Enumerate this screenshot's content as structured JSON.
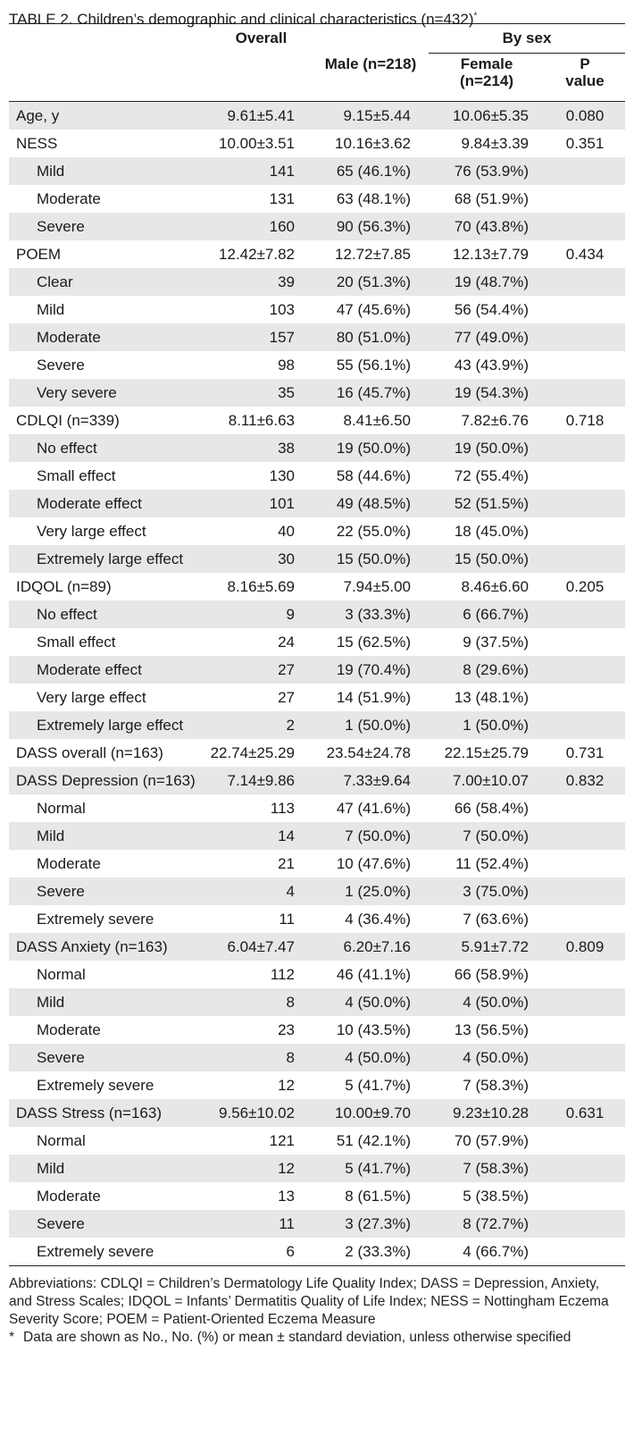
{
  "title": "TABLE 2.  Children’s demographic and clinical characteristics (n=432)",
  "title_mark": "*",
  "headers": {
    "overall": "Overall",
    "by_sex": "By sex",
    "male": "Male (n=218)",
    "female_1": "Female",
    "female_2": "(n=214)",
    "p_1": "P",
    "p_2": "value"
  },
  "rows": [
    {
      "label": "Age, y",
      "sub": false,
      "overall": "9.61±5.41",
      "male": "9.15±5.44",
      "female": "10.06±5.35",
      "p": "0.080"
    },
    {
      "label": "NESS",
      "sub": false,
      "overall": "10.00±3.51",
      "male": "10.16±3.62",
      "female": "9.84±3.39",
      "p": "0.351"
    },
    {
      "label": "Mild",
      "sub": true,
      "overall": "141",
      "male": "65 (46.1%)",
      "female": "76 (53.9%)",
      "p": ""
    },
    {
      "label": "Moderate",
      "sub": true,
      "overall": "131",
      "male": "63 (48.1%)",
      "female": "68 (51.9%)",
      "p": ""
    },
    {
      "label": "Severe",
      "sub": true,
      "overall": "160",
      "male": "90 (56.3%)",
      "female": "70 (43.8%)",
      "p": ""
    },
    {
      "label": "POEM",
      "sub": false,
      "overall": "12.42±7.82",
      "male": "12.72±7.85",
      "female": "12.13±7.79",
      "p": "0.434"
    },
    {
      "label": "Clear",
      "sub": true,
      "overall": "39",
      "male": "20 (51.3%)",
      "female": "19 (48.7%)",
      "p": ""
    },
    {
      "label": "Mild",
      "sub": true,
      "overall": "103",
      "male": "47 (45.6%)",
      "female": "56 (54.4%)",
      "p": ""
    },
    {
      "label": "Moderate",
      "sub": true,
      "overall": "157",
      "male": "80 (51.0%)",
      "female": "77 (49.0%)",
      "p": ""
    },
    {
      "label": "Severe",
      "sub": true,
      "overall": "98",
      "male": "55 (56.1%)",
      "female": "43 (43.9%)",
      "p": ""
    },
    {
      "label": "Very severe",
      "sub": true,
      "overall": "35",
      "male": "16 (45.7%)",
      "female": "19 (54.3%)",
      "p": ""
    },
    {
      "label": "CDLQI (n=339)",
      "sub": false,
      "overall": "8.11±6.63",
      "male": "8.41±6.50",
      "female": "7.82±6.76",
      "p": "0.718"
    },
    {
      "label": "No effect",
      "sub": true,
      "overall": "38",
      "male": "19 (50.0%)",
      "female": "19 (50.0%)",
      "p": ""
    },
    {
      "label": "Small effect",
      "sub": true,
      "overall": "130",
      "male": "58 (44.6%)",
      "female": "72 (55.4%)",
      "p": ""
    },
    {
      "label": "Moderate effect",
      "sub": true,
      "overall": "101",
      "male": "49 (48.5%)",
      "female": "52 (51.5%)",
      "p": ""
    },
    {
      "label": "Very large effect",
      "sub": true,
      "overall": "40",
      "male": "22 (55.0%)",
      "female": "18 (45.0%)",
      "p": ""
    },
    {
      "label": "Extremely large effect",
      "sub": true,
      "overall": "30",
      "male": "15 (50.0%)",
      "female": "15 (50.0%)",
      "p": ""
    },
    {
      "label": "IDQOL (n=89)",
      "sub": false,
      "overall": "8.16±5.69",
      "male": "7.94±5.00",
      "female": "8.46±6.60",
      "p": "0.205"
    },
    {
      "label": "No effect",
      "sub": true,
      "overall": "9",
      "male": "3 (33.3%)",
      "female": "6 (66.7%)",
      "p": ""
    },
    {
      "label": "Small effect",
      "sub": true,
      "overall": "24",
      "male": "15 (62.5%)",
      "female": "9 (37.5%)",
      "p": ""
    },
    {
      "label": "Moderate effect",
      "sub": true,
      "overall": "27",
      "male": "19 (70.4%)",
      "female": "8 (29.6%)",
      "p": ""
    },
    {
      "label": "Very large effect",
      "sub": true,
      "overall": "27",
      "male": "14 (51.9%)",
      "female": "13 (48.1%)",
      "p": ""
    },
    {
      "label": "Extremely large effect",
      "sub": true,
      "overall": "2",
      "male": "1 (50.0%)",
      "female": "1 (50.0%)",
      "p": ""
    },
    {
      "label": "DASS overall (n=163)",
      "sub": false,
      "overall": "22.74±25.29",
      "male": "23.54±24.78",
      "female": "22.15±25.79",
      "p": "0.731"
    },
    {
      "label": "DASS Depression (n=163)",
      "sub": false,
      "overall": "7.14±9.86",
      "male": "7.33±9.64",
      "female": "7.00±10.07",
      "p": "0.832"
    },
    {
      "label": "Normal",
      "sub": true,
      "overall": "113",
      "male": "47 (41.6%)",
      "female": "66 (58.4%)",
      "p": ""
    },
    {
      "label": "Mild",
      "sub": true,
      "overall": "14",
      "male": "7 (50.0%)",
      "female": "7 (50.0%)",
      "p": ""
    },
    {
      "label": "Moderate",
      "sub": true,
      "overall": "21",
      "male": "10 (47.6%)",
      "female": "11 (52.4%)",
      "p": ""
    },
    {
      "label": "Severe",
      "sub": true,
      "overall": "4",
      "male": "1 (25.0%)",
      "female": "3 (75.0%)",
      "p": ""
    },
    {
      "label": "Extremely severe",
      "sub": true,
      "overall": "11",
      "male": "4 (36.4%)",
      "female": "7 (63.6%)",
      "p": ""
    },
    {
      "label": "DASS Anxiety (n=163)",
      "sub": false,
      "overall": "6.04±7.47",
      "male": "6.20±7.16",
      "female": "5.91±7.72",
      "p": "0.809"
    },
    {
      "label": "Normal",
      "sub": true,
      "overall": "112",
      "male": "46 (41.1%)",
      "female": "66 (58.9%)",
      "p": ""
    },
    {
      "label": "Mild",
      "sub": true,
      "overall": "8",
      "male": "4 (50.0%)",
      "female": "4 (50.0%)",
      "p": ""
    },
    {
      "label": "Moderate",
      "sub": true,
      "overall": "23",
      "male": "10 (43.5%)",
      "female": "13 (56.5%)",
      "p": ""
    },
    {
      "label": "Severe",
      "sub": true,
      "overall": "8",
      "male": "4 (50.0%)",
      "female": "4 (50.0%)",
      "p": ""
    },
    {
      "label": "Extremely severe",
      "sub": true,
      "overall": "12",
      "male": "5 (41.7%)",
      "female": "7 (58.3%)",
      "p": ""
    },
    {
      "label": "DASS Stress (n=163)",
      "sub": false,
      "overall": "9.56±10.02",
      "male": "10.00±9.70",
      "female": "9.23±10.28",
      "p": "0.631"
    },
    {
      "label": "Normal",
      "sub": true,
      "overall": "121",
      "male": "51 (42.1%)",
      "female": "70 (57.9%)",
      "p": ""
    },
    {
      "label": "Mild",
      "sub": true,
      "overall": "12",
      "male": "5 (41.7%)",
      "female": "7 (58.3%)",
      "p": ""
    },
    {
      "label": "Moderate",
      "sub": true,
      "overall": "13",
      "male": "8 (61.5%)",
      "female": "5 (38.5%)",
      "p": ""
    },
    {
      "label": "Severe",
      "sub": true,
      "overall": "11",
      "male": "3 (27.3%)",
      "female": "8 (72.7%)",
      "p": ""
    },
    {
      "label": "Extremely severe",
      "sub": true,
      "overall": "6",
      "male": "2 (33.3%)",
      "female": "4 (66.7%)",
      "p": ""
    }
  ],
  "footnotes": {
    "abbreviations": "Abbreviations: CDLQI = Children’s Dermatology Life Quality Index; DASS = Depression, Anxiety, and Stress Scales; IDQOL = Infants’ Dermatitis Quality of Life Index; NESS = Nottingham Eczema Severity Score; POEM = Patient-Oriented Eczema Measure",
    "note_mark": "*",
    "note": "Data are shown as No., No. (%) or mean ± standard deviation, unless otherwise specified"
  }
}
